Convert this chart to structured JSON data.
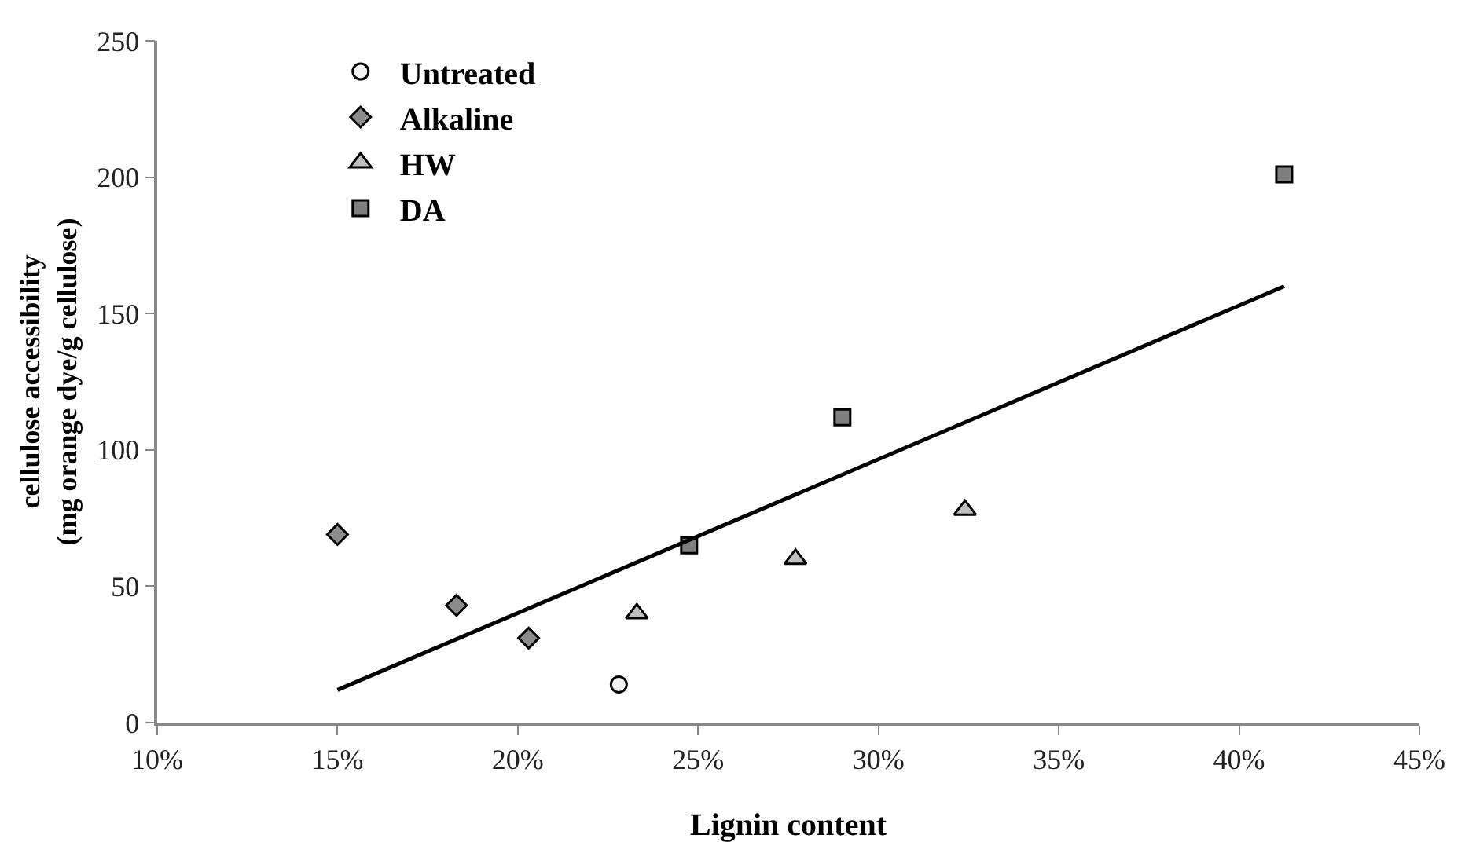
{
  "chart_data": {
    "type": "scatter",
    "xlabel": "Lignin content",
    "ylabel": "cellulose accessibility\n(mg orange dye/g cellulose)",
    "xlim": [
      10,
      45
    ],
    "xticks": [
      {
        "value": 10,
        "label": "10%"
      },
      {
        "value": 15,
        "label": "15%"
      },
      {
        "value": 20,
        "label": "20%"
      },
      {
        "value": 25,
        "label": "25%"
      },
      {
        "value": 30,
        "label": "30%"
      },
      {
        "value": 35,
        "label": "35%"
      },
      {
        "value": 40,
        "label": "40%"
      },
      {
        "value": 45,
        "label": "45%"
      }
    ],
    "ylim": [
      0,
      250
    ],
    "yticks": [
      0,
      50,
      100,
      150,
      200,
      250
    ],
    "legend": "top left",
    "series": [
      {
        "name": "Untreated",
        "color": "#f2f2f2",
        "marker": "circle",
        "x": [
          22.8
        ],
        "values": [
          14
        ]
      },
      {
        "name": "Alkaline",
        "color": "#8c8c8c",
        "marker": "diamond",
        "x": [
          15.0,
          18.3,
          20.3
        ],
        "values": [
          69,
          43,
          31
        ]
      },
      {
        "name": "HW",
        "color": "#bfbfbf",
        "marker": "triangle",
        "x": [
          23.3,
          27.7,
          32.4
        ],
        "values": [
          40,
          60,
          78
        ]
      },
      {
        "name": "DA",
        "color": "#7f7f7f",
        "marker": "square",
        "x": [
          24.75,
          29.0,
          41.25
        ],
        "values": [
          65,
          112,
          201
        ]
      },
      {
        "type": "line",
        "color": "#000000",
        "marker": "none",
        "line_style": "solid",
        "x": [
          15.0,
          41.25
        ],
        "values": [
          12,
          160
        ]
      }
    ]
  }
}
